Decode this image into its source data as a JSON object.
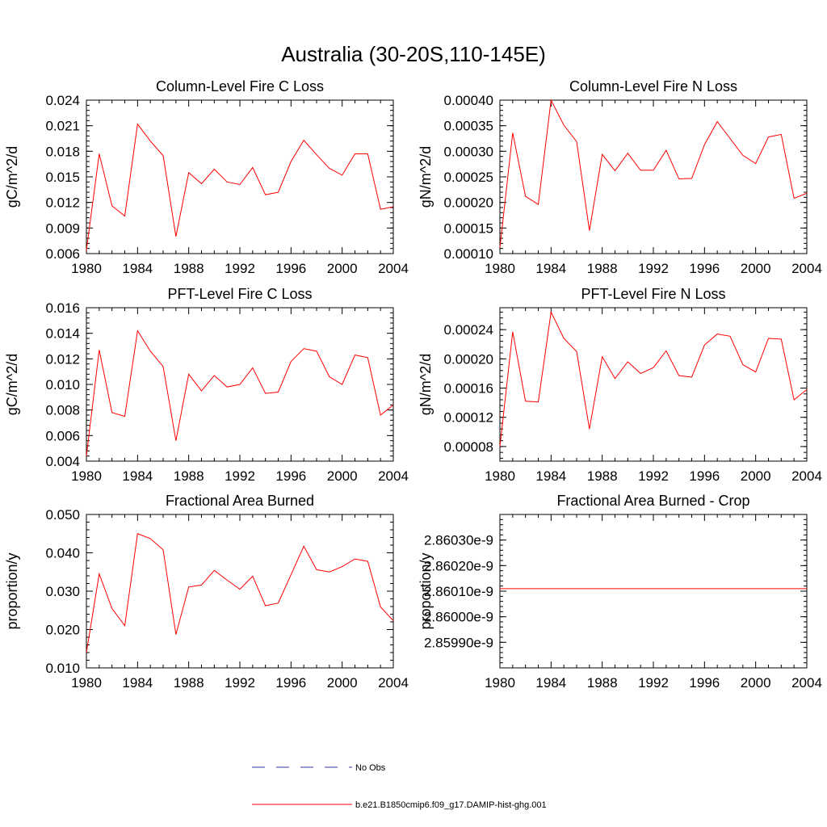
{
  "page_title": "Australia (30-20S,110-145E)",
  "colors": {
    "series": "#ff0000",
    "obs": "#3333aa",
    "axis": "#000000"
  },
  "legend": [
    {
      "label": "No Obs",
      "style": "dashed"
    },
    {
      "label": "b.e21.B1850cmip6.f09_g17.DAMIP-hist-ghg.001",
      "style": "solid"
    }
  ],
  "chart_data": [
    {
      "type": "line",
      "title": "Column-Level Fire C Loss",
      "ylabel": "gC/m^2/d",
      "xlim": [
        1980,
        2004
      ],
      "ylim": [
        0.006,
        0.024
      ],
      "xticks": [
        1980,
        1984,
        1988,
        1992,
        1996,
        2000,
        2004
      ],
      "xtick_labels": [
        "1980",
        "1984",
        "1988",
        "1992",
        "1996",
        "2000",
        "2004"
      ],
      "yticks": [
        0.006,
        0.009,
        0.012,
        0.015,
        0.018,
        0.021,
        0.024
      ],
      "ytick_labels": [
        "0.006",
        "0.009",
        "0.012",
        "0.015",
        "0.018",
        "0.021",
        "0.024"
      ],
      "series": [
        {
          "x": [
            1980,
            1981,
            1982,
            1983,
            1984,
            1985,
            1986,
            1987,
            1988,
            1989,
            1990,
            1991,
            1992,
            1993,
            1994,
            1995,
            1996,
            1997,
            1998,
            1999,
            2000,
            2001,
            2002,
            2003,
            2004
          ],
          "values": [
            0.0064,
            0.0177,
            0.0116,
            0.0104,
            0.0212,
            0.0192,
            0.0175,
            0.008,
            0.0155,
            0.0142,
            0.0159,
            0.0144,
            0.0141,
            0.0161,
            0.0129,
            0.0132,
            0.0168,
            0.0193,
            0.0176,
            0.016,
            0.0152,
            0.0177,
            0.0177,
            0.0112,
            0.0115
          ]
        }
      ]
    },
    {
      "type": "line",
      "title": "Column-Level Fire N Loss",
      "ylabel": "gN/m^2/d",
      "xlim": [
        1980,
        2004
      ],
      "ylim": [
        0.0001,
        0.0004
      ],
      "xticks": [
        1980,
        1984,
        1988,
        1992,
        1996,
        2000,
        2004
      ],
      "xtick_labels": [
        "1980",
        "1984",
        "1988",
        "1992",
        "1996",
        "2000",
        "2004"
      ],
      "yticks": [
        0.0001,
        0.00015,
        0.0002,
        0.00025,
        0.0003,
        0.00035,
        0.0004
      ],
      "ytick_labels": [
        "0.00010",
        "0.00015",
        "0.00020",
        "0.00025",
        "0.00030",
        "0.00035",
        "0.00040"
      ],
      "series": [
        {
          "x": [
            1980,
            1981,
            1982,
            1983,
            1984,
            1985,
            1986,
            1987,
            1988,
            1989,
            1990,
            1991,
            1992,
            1993,
            1994,
            1995,
            1996,
            1997,
            1998,
            1999,
            2000,
            2001,
            2002,
            2003,
            2004
          ],
          "values": [
            0.000112,
            0.000336,
            0.000212,
            0.000196,
            0.0004,
            0.000351,
            0.000319,
            0.000145,
            0.000294,
            0.000262,
            0.000296,
            0.000263,
            0.000263,
            0.000302,
            0.000246,
            0.000247,
            0.000313,
            0.000358,
            0.000325,
            0.000292,
            0.000276,
            0.000328,
            0.000333,
            0.000208,
            0.000218
          ]
        }
      ]
    },
    {
      "type": "line",
      "title": "PFT-Level Fire C Loss",
      "ylabel": "gC/m^2/d",
      "xlim": [
        1980,
        2004
      ],
      "ylim": [
        0.004,
        0.016
      ],
      "xticks": [
        1980,
        1984,
        1988,
        1992,
        1996,
        2000,
        2004
      ],
      "xtick_labels": [
        "1980",
        "1984",
        "1988",
        "1992",
        "1996",
        "2000",
        "2004"
      ],
      "yticks": [
        0.004,
        0.006,
        0.008,
        0.01,
        0.012,
        0.014,
        0.016
      ],
      "ytick_labels": [
        "0.004",
        "0.006",
        "0.008",
        "0.010",
        "0.012",
        "0.014",
        "0.016"
      ],
      "series": [
        {
          "x": [
            1980,
            1981,
            1982,
            1983,
            1984,
            1985,
            1986,
            1987,
            1988,
            1989,
            1990,
            1991,
            1992,
            1993,
            1994,
            1995,
            1996,
            1997,
            1998,
            1999,
            2000,
            2001,
            2002,
            2003,
            2004
          ],
          "values": [
            0.0044,
            0.0127,
            0.0078,
            0.0075,
            0.0142,
            0.0126,
            0.0114,
            0.0056,
            0.0108,
            0.0095,
            0.0107,
            0.0098,
            0.01,
            0.0113,
            0.0093,
            0.0094,
            0.0118,
            0.0128,
            0.0126,
            0.0106,
            0.01,
            0.0123,
            0.0121,
            0.0076,
            0.0084
          ]
        }
      ]
    },
    {
      "type": "line",
      "title": "PFT-Level Fire N Loss",
      "ylabel": "gN/m^2/d",
      "xlim": [
        1980,
        2004
      ],
      "ylim": [
        6e-05,
        0.00027
      ],
      "xticks": [
        1980,
        1984,
        1988,
        1992,
        1996,
        2000,
        2004
      ],
      "xtick_labels": [
        "1980",
        "1984",
        "1988",
        "1992",
        "1996",
        "2000",
        "2004"
      ],
      "yticks": [
        8e-05,
        0.00012,
        0.00016,
        0.0002,
        0.00024
      ],
      "ytick_labels": [
        "0.00008",
        "0.00012",
        "0.00016",
        "0.00020",
        "0.00024"
      ],
      "series": [
        {
          "x": [
            1980,
            1981,
            1982,
            1983,
            1984,
            1985,
            1986,
            1987,
            1988,
            1989,
            1990,
            1991,
            1992,
            1993,
            1994,
            1995,
            1996,
            1997,
            1998,
            1999,
            2000,
            2001,
            2002,
            2003,
            2004
          ],
          "values": [
            8e-05,
            0.000237,
            0.000142,
            0.000141,
            0.000264,
            0.000228,
            0.00021,
            0.000104,
            0.000203,
            0.000173,
            0.000196,
            0.00018,
            0.000188,
            0.000211,
            0.000177,
            0.000175,
            0.000219,
            0.000234,
            0.000231,
            0.000192,
            0.000182,
            0.000228,
            0.000227,
            0.000144,
            0.000158
          ]
        }
      ]
    },
    {
      "type": "line",
      "title": "Fractional Area Burned",
      "ylabel": "proportion/y",
      "xlim": [
        1980,
        2004
      ],
      "ylim": [
        0.01,
        0.05
      ],
      "xticks": [
        1980,
        1984,
        1988,
        1992,
        1996,
        2000,
        2004
      ],
      "xtick_labels": [
        "1980",
        "1984",
        "1988",
        "1992",
        "1996",
        "2000",
        "2004"
      ],
      "yticks": [
        0.01,
        0.02,
        0.03,
        0.04,
        0.05
      ],
      "ytick_labels": [
        "0.010",
        "0.020",
        "0.030",
        "0.040",
        "0.050"
      ],
      "series": [
        {
          "x": [
            1980,
            1981,
            1982,
            1983,
            1984,
            1985,
            1986,
            1987,
            1988,
            1989,
            1990,
            1991,
            1992,
            1993,
            1994,
            1995,
            1996,
            1997,
            1998,
            1999,
            2000,
            2001,
            2002,
            2003,
            2004
          ],
          "values": [
            0.014,
            0.0345,
            0.0255,
            0.021,
            0.045,
            0.0437,
            0.0408,
            0.0187,
            0.0311,
            0.0316,
            0.0354,
            0.0329,
            0.0305,
            0.0339,
            0.0262,
            0.0269,
            0.0343,
            0.0417,
            0.0356,
            0.035,
            0.0364,
            0.0384,
            0.0378,
            0.0259,
            0.0223
          ]
        }
      ]
    },
    {
      "type": "line",
      "title": "Fractional Area Burned - Crop",
      "ylabel": "proportion/y",
      "xlim": [
        1980,
        2004
      ],
      "ylim": [
        2.8598e-09,
        2.8604e-09
      ],
      "xticks": [
        1980,
        1984,
        1988,
        1992,
        1996,
        2000,
        2004
      ],
      "xtick_labels": [
        "1980",
        "1984",
        "1988",
        "1992",
        "1996",
        "2000",
        "2004"
      ],
      "yticks": [
        2.8599e-09,
        2.86e-09,
        2.8601e-09,
        2.8602e-09,
        2.8603e-09
      ],
      "ytick_labels": [
        "2.85990e-9",
        "2.86000e-9",
        "2.86010e-9",
        "2.86020e-9",
        "2.86030e-9"
      ],
      "series": [
        {
          "x": [
            1980,
            2004
          ],
          "values": [
            2.86011e-09,
            2.86011e-09
          ]
        }
      ]
    }
  ]
}
